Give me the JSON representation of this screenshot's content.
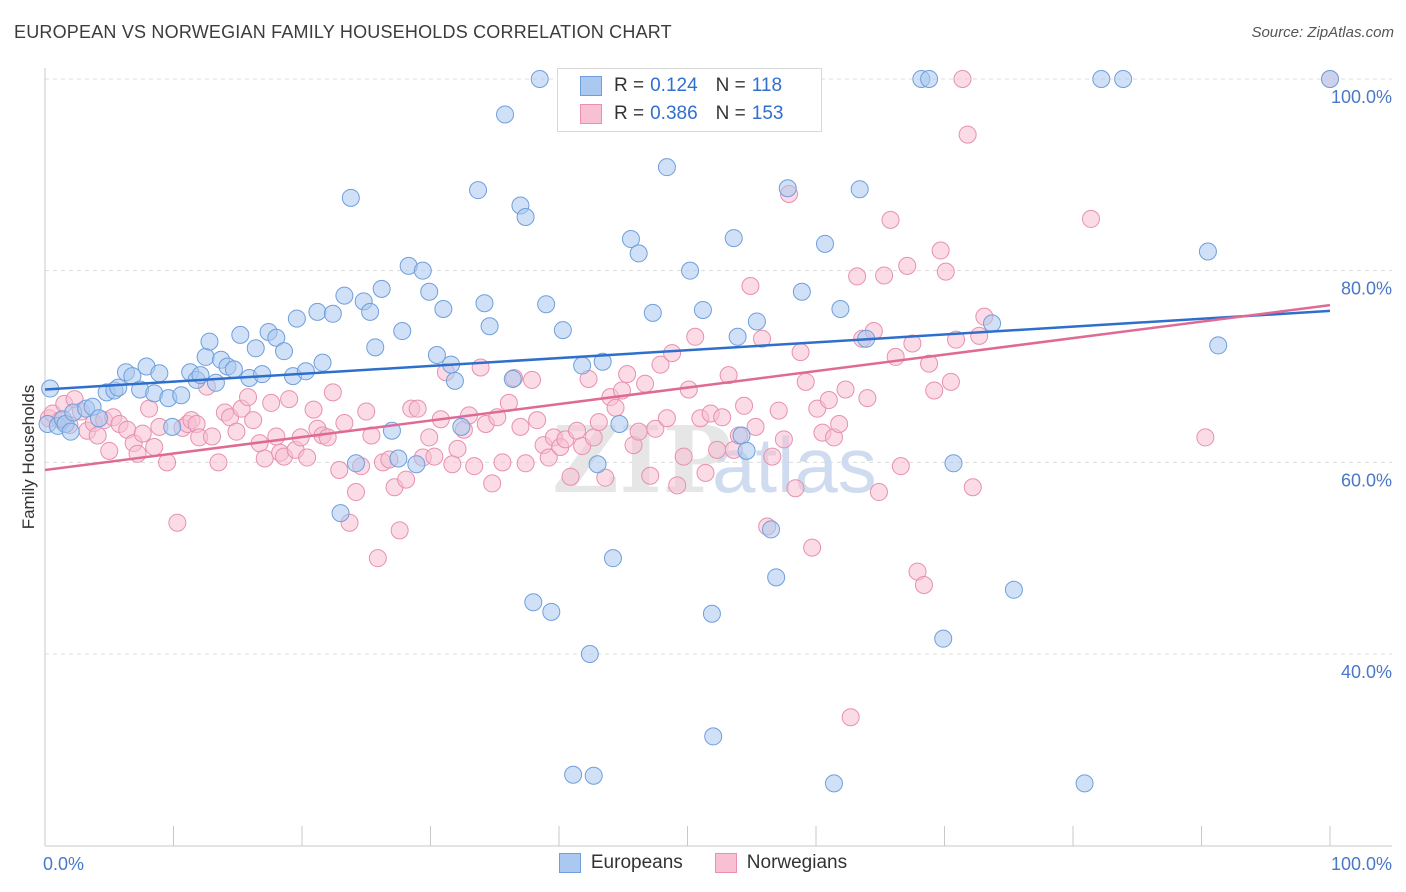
{
  "header": {
    "title": "EUROPEAN VS NORWEGIAN FAMILY HOUSEHOLDS CORRELATION CHART",
    "source": "Source: ZipAtlas.com"
  },
  "watermark": {
    "zip": "ZIP",
    "atlas": "atlas"
  },
  "legend": {
    "europeans": {
      "r_label": "R =",
      "r_value": "0.124",
      "n_label": "N =",
      "n_value": "118"
    },
    "norwegians": {
      "r_label": "R =",
      "r_value": "0.386",
      "n_label": "N =",
      "n_value": "153"
    }
  },
  "bottom_legend": {
    "europeans": "Europeans",
    "norwegians": "Norwegians"
  },
  "colors": {
    "europeans_fill": "#aac8f0",
    "europeans_stroke": "#6f9fdc",
    "europeans_line": "#2e6fcc",
    "norwegians_fill": "#f8c0d2",
    "norwegians_stroke": "#e890ae",
    "norwegians_line": "#e06a96",
    "tick_text": "#4a78c8",
    "grid": "#dcdcdc"
  },
  "chart_data": {
    "type": "scatter",
    "title": "EUROPEAN VS NORWEGIAN FAMILY HOUSEHOLDS CORRELATION CHART",
    "xlabel": "",
    "ylabel": "Family Households",
    "xlim": [
      0,
      100
    ],
    "ylim": [
      18,
      102
    ],
    "x_tick_labels": [
      "0.0%",
      "100.0%"
    ],
    "y_ticks": [
      40,
      60,
      80,
      100
    ],
    "y_tick_labels": [
      "40.0%",
      "60.0%",
      "80.0%",
      "100.0%"
    ],
    "grid": "horizontal dashed",
    "legend_position": "top-center",
    "series": [
      {
        "name": "Europeans",
        "r": 0.124,
        "n": 118,
        "trend": {
          "x": [
            0,
            100
          ],
          "y": [
            67.6,
            75.8
          ]
        },
        "points": [
          [
            0.2,
            64
          ],
          [
            0.4,
            67.7
          ],
          [
            1.0,
            63.8
          ],
          [
            1.4,
            64.5
          ],
          [
            1.6,
            64
          ],
          [
            2.0,
            63.2
          ],
          [
            2.2,
            65.2
          ],
          [
            3.2,
            65.6
          ],
          [
            3.7,
            65.8
          ],
          [
            4.2,
            64.6
          ],
          [
            4.8,
            67.3
          ],
          [
            5.4,
            67.5
          ],
          [
            5.7,
            67.8
          ],
          [
            6.3,
            69.4
          ],
          [
            6.8,
            69
          ],
          [
            7.4,
            67.6
          ],
          [
            7.9,
            70
          ],
          [
            8.5,
            67.2
          ],
          [
            8.9,
            69.3
          ],
          [
            9.6,
            66.7
          ],
          [
            9.9,
            63.7
          ],
          [
            10.6,
            67
          ],
          [
            11.3,
            69.4
          ],
          [
            11.8,
            68.6
          ],
          [
            12.1,
            69.1
          ],
          [
            12.5,
            71
          ],
          [
            12.8,
            72.6
          ],
          [
            13.3,
            68.3
          ],
          [
            13.7,
            70.7
          ],
          [
            14.2,
            70
          ],
          [
            14.7,
            69.7
          ],
          [
            15.2,
            73.3
          ],
          [
            15.9,
            68.8
          ],
          [
            16.4,
            71.9
          ],
          [
            16.9,
            69.2
          ],
          [
            17.4,
            73.6
          ],
          [
            18.0,
            73
          ],
          [
            18.6,
            71.6
          ],
          [
            19.3,
            69
          ],
          [
            19.6,
            75
          ],
          [
            20.3,
            69.5
          ],
          [
            21.2,
            75.7
          ],
          [
            21.6,
            70.4
          ],
          [
            22.4,
            75.5
          ],
          [
            23.0,
            54.7
          ],
          [
            23.3,
            77.4
          ],
          [
            23.8,
            87.6
          ],
          [
            24.2,
            59.9
          ],
          [
            24.8,
            76.8
          ],
          [
            25.3,
            75.7
          ],
          [
            25.7,
            72
          ],
          [
            26.2,
            78.1
          ],
          [
            27.0,
            63.3
          ],
          [
            27.5,
            60.4
          ],
          [
            27.8,
            73.7
          ],
          [
            28.3,
            80.5
          ],
          [
            28.9,
            59.8
          ],
          [
            29.4,
            80
          ],
          [
            29.9,
            77.8
          ],
          [
            30.5,
            71.2
          ],
          [
            31.0,
            76
          ],
          [
            31.6,
            70.2
          ],
          [
            31.9,
            68.5
          ],
          [
            32.4,
            63.7
          ],
          [
            33.7,
            88.4
          ],
          [
            34.2,
            76.6
          ],
          [
            34.6,
            74.2
          ],
          [
            35.8,
            96.3
          ],
          [
            36.4,
            68.7
          ],
          [
            37.0,
            86.8
          ],
          [
            37.4,
            85.6
          ],
          [
            38.0,
            45.4
          ],
          [
            38.5,
            100
          ],
          [
            39.0,
            76.5
          ],
          [
            39.4,
            44.4
          ],
          [
            40.3,
            73.8
          ],
          [
            41.1,
            27.4
          ],
          [
            41.8,
            70.1
          ],
          [
            42.4,
            40
          ],
          [
            42.7,
            27.3
          ],
          [
            43.0,
            59.8
          ],
          [
            43.4,
            70.5
          ],
          [
            44.2,
            50
          ],
          [
            44.7,
            64
          ],
          [
            45.6,
            83.3
          ],
          [
            46.2,
            81.8
          ],
          [
            47.3,
            75.6
          ],
          [
            48.4,
            90.8
          ],
          [
            50.2,
            80
          ],
          [
            51.2,
            75.9
          ],
          [
            51.9,
            44.2
          ],
          [
            52.0,
            31.4
          ],
          [
            52.6,
            95.5
          ],
          [
            53.6,
            83.4
          ],
          [
            53.9,
            73.1
          ],
          [
            54.2,
            62.8
          ],
          [
            54.6,
            61.2
          ],
          [
            55.4,
            74.7
          ],
          [
            56.5,
            53
          ],
          [
            56.9,
            48
          ],
          [
            57.8,
            88.6
          ],
          [
            58.9,
            77.8
          ],
          [
            60.7,
            82.8
          ],
          [
            61.4,
            26.5
          ],
          [
            61.9,
            76
          ],
          [
            63.4,
            88.5
          ],
          [
            63.9,
            72.9
          ],
          [
            68.2,
            100
          ],
          [
            68.8,
            100
          ],
          [
            69.9,
            41.6
          ],
          [
            70.7,
            59.9
          ],
          [
            73.7,
            74.5
          ],
          [
            75.4,
            46.7
          ],
          [
            80.9,
            26.5
          ],
          [
            82.2,
            100
          ],
          [
            83.9,
            100
          ],
          [
            90.5,
            82
          ],
          [
            91.3,
            72.2
          ],
          [
            100,
            100
          ]
        ]
      },
      {
        "name": "Norwegians",
        "r": 0.386,
        "n": 153,
        "trend": {
          "x": [
            0,
            100
          ],
          "y": [
            59.2,
            76.4
          ]
        },
        "points": [
          [
            0.3,
            64.6
          ],
          [
            0.6,
            65.1
          ],
          [
            1.2,
            64.4
          ],
          [
            1.5,
            66.1
          ],
          [
            1.9,
            63.9
          ],
          [
            2.3,
            66.6
          ],
          [
            2.8,
            65.3
          ],
          [
            3.3,
            63.3
          ],
          [
            3.8,
            64.1
          ],
          [
            4.1,
            62.8
          ],
          [
            4.6,
            64.4
          ],
          [
            5.0,
            61.2
          ],
          [
            5.3,
            64.7
          ],
          [
            5.8,
            64
          ],
          [
            6.4,
            63.4
          ],
          [
            6.9,
            62
          ],
          [
            7.2,
            60.9
          ],
          [
            7.6,
            63
          ],
          [
            8.1,
            65.6
          ],
          [
            8.5,
            61.6
          ],
          [
            8.9,
            63.7
          ],
          [
            9.5,
            60
          ],
          [
            10.3,
            53.7
          ],
          [
            10.7,
            63.6
          ],
          [
            11.1,
            64
          ],
          [
            11.4,
            64.4
          ],
          [
            11.8,
            64
          ],
          [
            12.0,
            62.6
          ],
          [
            12.6,
            67.9
          ],
          [
            13.0,
            62.7
          ],
          [
            13.5,
            60
          ],
          [
            14.0,
            65.2
          ],
          [
            14.4,
            64.7
          ],
          [
            14.9,
            63.2
          ],
          [
            15.3,
            65.6
          ],
          [
            15.8,
            66.8
          ],
          [
            16.2,
            64.4
          ],
          [
            16.7,
            62
          ],
          [
            17.1,
            60.4
          ],
          [
            17.6,
            66.2
          ],
          [
            18.0,
            62.7
          ],
          [
            18.3,
            61
          ],
          [
            18.6,
            60.6
          ],
          [
            19.0,
            66.6
          ],
          [
            19.5,
            61.3
          ],
          [
            19.9,
            62.6
          ],
          [
            20.4,
            60.5
          ],
          [
            20.9,
            65.5
          ],
          [
            21.2,
            63.5
          ],
          [
            21.6,
            62.8
          ],
          [
            22.0,
            62.6
          ],
          [
            22.4,
            67.3
          ],
          [
            22.9,
            59.2
          ],
          [
            23.3,
            64.1
          ],
          [
            23.7,
            53.7
          ],
          [
            24.2,
            56.9
          ],
          [
            24.6,
            59.6
          ],
          [
            25.0,
            65.3
          ],
          [
            25.4,
            62.8
          ],
          [
            25.9,
            50
          ],
          [
            26.3,
            60
          ],
          [
            26.8,
            60.3
          ],
          [
            27.2,
            57.4
          ],
          [
            27.6,
            52.9
          ],
          [
            28.1,
            58.2
          ],
          [
            28.5,
            65.6
          ],
          [
            29.0,
            65.6
          ],
          [
            29.4,
            60.5
          ],
          [
            29.9,
            62.6
          ],
          [
            30.3,
            60.6
          ],
          [
            30.8,
            64.5
          ],
          [
            31.2,
            69.4
          ],
          [
            31.7,
            59.8
          ],
          [
            32.1,
            61.4
          ],
          [
            32.6,
            63.4
          ],
          [
            33.0,
            64.9
          ],
          [
            33.4,
            59.6
          ],
          [
            33.9,
            69.9
          ],
          [
            34.3,
            64
          ],
          [
            34.8,
            57.8
          ],
          [
            35.2,
            64.7
          ],
          [
            35.6,
            60
          ],
          [
            36.1,
            66.2
          ],
          [
            36.5,
            68.8
          ],
          [
            37.0,
            63.7
          ],
          [
            37.4,
            59.9
          ],
          [
            37.9,
            68.6
          ],
          [
            38.3,
            64.4
          ],
          [
            38.8,
            61.8
          ],
          [
            39.2,
            60.5
          ],
          [
            39.6,
            62.6
          ],
          [
            40.1,
            61.6
          ],
          [
            40.5,
            62.4
          ],
          [
            40.9,
            58.5
          ],
          [
            41.4,
            63.3
          ],
          [
            41.8,
            61.7
          ],
          [
            42.3,
            68.7
          ],
          [
            42.7,
            62.6
          ],
          [
            43.1,
            64.2
          ],
          [
            43.6,
            58.4
          ],
          [
            44.0,
            66.8
          ],
          [
            44.4,
            65.7
          ],
          [
            44.9,
            67.5
          ],
          [
            45.3,
            69.2
          ],
          [
            45.8,
            61.8
          ],
          [
            46.2,
            63.2
          ],
          [
            46.7,
            68.2
          ],
          [
            47.1,
            58.6
          ],
          [
            47.5,
            63.5
          ],
          [
            47.9,
            70.2
          ],
          [
            48.4,
            64.6
          ],
          [
            48.8,
            71.4
          ],
          [
            49.2,
            57.6
          ],
          [
            49.7,
            60.6
          ],
          [
            50.1,
            67.6
          ],
          [
            50.6,
            73.1
          ],
          [
            51.0,
            64.6
          ],
          [
            51.4,
            58.9
          ],
          [
            51.8,
            65.1
          ],
          [
            52.3,
            61.3
          ],
          [
            52.7,
            64.7
          ],
          [
            53.2,
            69.1
          ],
          [
            53.6,
            61.3
          ],
          [
            54.0,
            62.8
          ],
          [
            54.4,
            65.9
          ],
          [
            54.9,
            78.4
          ],
          [
            55.3,
            63.7
          ],
          [
            55.8,
            72.9
          ],
          [
            56.2,
            53.3
          ],
          [
            56.6,
            60.6
          ],
          [
            57.1,
            65.4
          ],
          [
            57.5,
            62.4
          ],
          [
            57.9,
            88
          ],
          [
            58.4,
            57.3
          ],
          [
            58.8,
            71.5
          ],
          [
            59.2,
            68.4
          ],
          [
            59.7,
            51.1
          ],
          [
            60.1,
            65.6
          ],
          [
            60.5,
            63.1
          ],
          [
            61.0,
            66.5
          ],
          [
            61.4,
            62.6
          ],
          [
            61.8,
            64
          ],
          [
            62.3,
            67.6
          ],
          [
            62.7,
            33.4
          ],
          [
            63.2,
            79.4
          ],
          [
            63.6,
            72.9
          ],
          [
            64.0,
            66.7
          ],
          [
            64.5,
            73.7
          ],
          [
            64.9,
            56.9
          ],
          [
            65.3,
            79.5
          ],
          [
            65.8,
            85.3
          ],
          [
            66.2,
            71
          ],
          [
            66.6,
            59.6
          ],
          [
            67.1,
            80.5
          ],
          [
            67.5,
            72.4
          ],
          [
            67.9,
            48.6
          ],
          [
            68.4,
            47.2
          ],
          [
            68.8,
            70.3
          ],
          [
            69.2,
            67.5
          ],
          [
            69.7,
            82.1
          ],
          [
            70.1,
            79.9
          ],
          [
            70.5,
            68.4
          ],
          [
            70.9,
            72.8
          ],
          [
            71.4,
            100
          ],
          [
            71.8,
            94.2
          ],
          [
            72.2,
            57.4
          ],
          [
            72.7,
            73.2
          ],
          [
            73.1,
            75.2
          ],
          [
            81.4,
            85.4
          ],
          [
            90.3,
            62.6
          ],
          [
            100,
            100
          ]
        ]
      }
    ]
  }
}
